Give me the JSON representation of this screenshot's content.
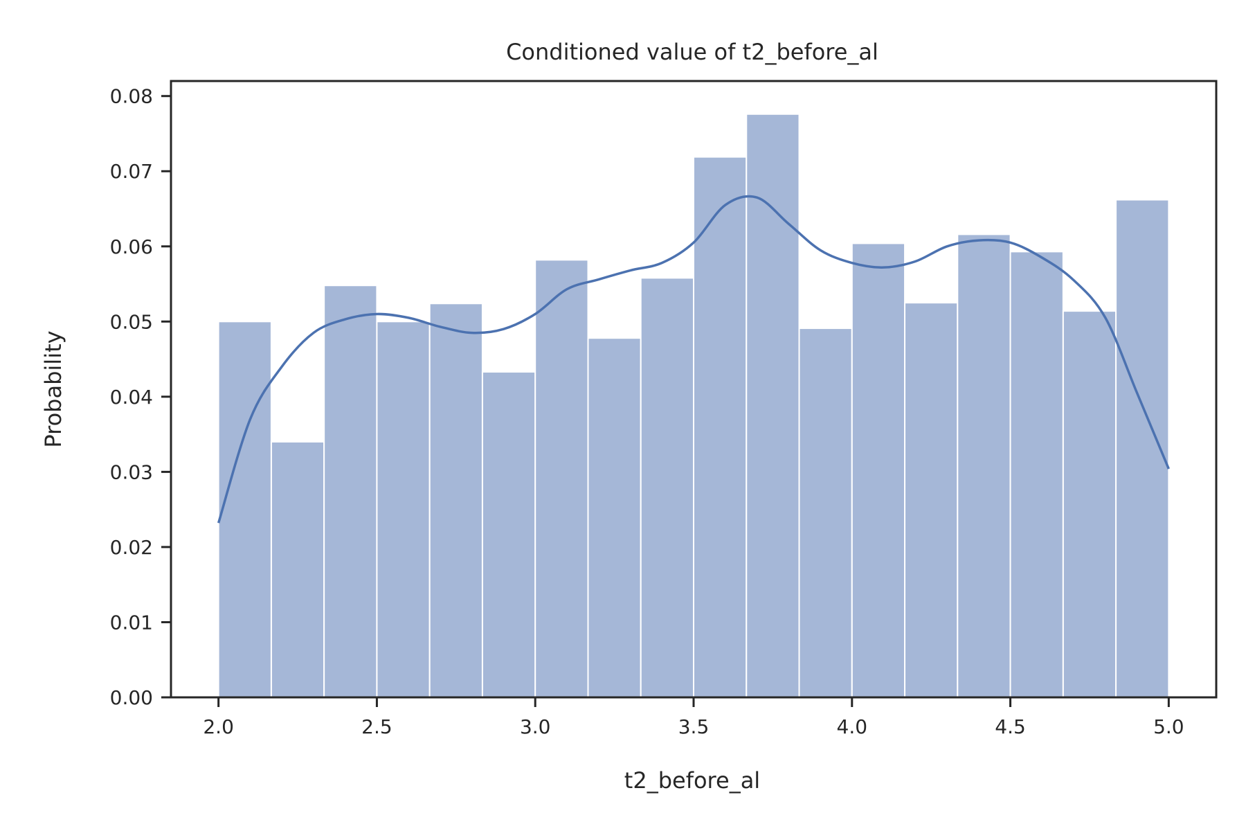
{
  "colors": {
    "bar_fill": "#a5b7d7",
    "bar_edge": "#ffffff",
    "kde_line": "#4c72b0",
    "axis": "#262626"
  },
  "chart_data": {
    "type": "bar",
    "title": "Conditioned value of t2_before_al",
    "xlabel": "t2_before_al",
    "ylabel": "Probability",
    "xlim": [
      1.85,
      5.15
    ],
    "ylim": [
      0,
      0.082
    ],
    "xticks": [
      "2.0",
      "2.5",
      "3.0",
      "3.5",
      "4.0",
      "4.5",
      "5.0"
    ],
    "yticks": [
      "0.00",
      "0.01",
      "0.02",
      "0.03",
      "0.04",
      "0.05",
      "0.06",
      "0.07",
      "0.08"
    ],
    "grid": false,
    "bin_edges": [
      2.0,
      2.1667,
      2.3333,
      2.5,
      2.6667,
      2.8333,
      3.0,
      3.1667,
      3.3333,
      3.5,
      3.6667,
      3.8333,
      4.0,
      4.1667,
      4.3333,
      4.5,
      4.6667,
      4.8333,
      5.0
    ],
    "values": [
      0.05,
      0.034,
      0.0548,
      0.05,
      0.0524,
      0.0433,
      0.0582,
      0.0478,
      0.0558,
      0.0719,
      0.0776,
      0.0491,
      0.0604,
      0.0525,
      0.0616,
      0.0593,
      0.0514,
      0.0662
    ],
    "kde": {
      "x": [
        2.0,
        2.1,
        2.2,
        2.3,
        2.4,
        2.5,
        2.6,
        2.7,
        2.8,
        2.9,
        3.0,
        3.1,
        3.2,
        3.3,
        3.4,
        3.5,
        3.6,
        3.7,
        3.8,
        3.9,
        4.0,
        4.1,
        4.2,
        4.3,
        4.4,
        4.5,
        4.6,
        4.7,
        4.8,
        4.9,
        5.0
      ],
      "y": [
        0.0232,
        0.037,
        0.044,
        0.0485,
        0.0503,
        0.051,
        0.0505,
        0.0493,
        0.0485,
        0.049,
        0.051,
        0.0543,
        0.0556,
        0.0568,
        0.0578,
        0.0605,
        0.0655,
        0.0665,
        0.063,
        0.0595,
        0.0578,
        0.0572,
        0.058,
        0.06,
        0.0608,
        0.0605,
        0.0585,
        0.0555,
        0.0505,
        0.0405,
        0.0304
      ]
    }
  }
}
